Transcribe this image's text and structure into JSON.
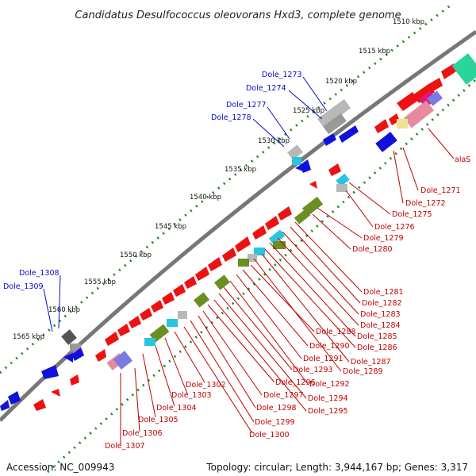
{
  "title": "Candidatus Desulfococcus oleovorans Hxd3, complete genome",
  "colors": {
    "backbone": "#777777",
    "tick": "#1a8a1a",
    "forward_gene": "#ee1111",
    "reverse_gene": "#1111dd",
    "grey_feature": "#b8b8b8",
    "cyan_feature": "#29c4e0",
    "olive_feature": "#6b8e23",
    "pink_feature": "#e78aa0",
    "green_feature": "#2ad49a",
    "label_blue": "#0a0ad0",
    "label_red": "#c00000"
  },
  "kbp_labels": [
    "1510 kbp",
    "1515 kbp",
    "1520 kbp",
    "1525 kbp",
    "1530 kbp",
    "1535 kbp",
    "1540 kbp",
    "1545 kbp",
    "1550 kbp",
    "1555 kbp",
    "1560 kbp",
    "1565 kbp"
  ],
  "outer_labels": [
    "Dole_1273",
    "Dole_1274",
    "Dole_1277",
    "Dole_1278",
    "Dole_1308",
    "Dole_1309"
  ],
  "inner_labels": [
    "alaS",
    "Dole_1271",
    "Dole_1272",
    "Dole_1275",
    "Dole_1276",
    "Dole_1279",
    "Dole_1280",
    "Dole_1281",
    "Dole_1282",
    "Dole_1283",
    "Dole_1284",
    "Dole_1285",
    "Dole_1286",
    "Dole_1287",
    "Dole_1288",
    "Dole_1289",
    "Dole_1290",
    "Dole_1291",
    "Dole_1292",
    "Dole_1293",
    "Dole_1294",
    "Dole_1295",
    "Dole_1296",
    "Dole_1297",
    "Dole_1298",
    "Dole_1299",
    "Dole_1300",
    "Dole_1302",
    "Dole_1303",
    "Dole_1304",
    "Dole_1305",
    "Dole_1306",
    "Dole_1307"
  ],
  "footer": {
    "accession": "Accession: NC_009943",
    "topology": "Topology: circular; Length: 3,944,167 bp; Genes: 3,317"
  }
}
